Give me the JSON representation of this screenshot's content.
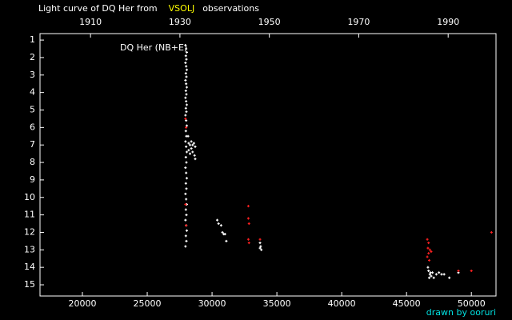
{
  "chart_data": {
    "type": "scatter",
    "title": "Light curve of DQ Her from",
    "title_highlight": "VSOLJ",
    "title_end": "observations",
    "annotation": "DQ Her (NB+E)",
    "credit": "drawn by ooruri",
    "xlim": [
      16730,
      51900
    ],
    "xticks": [
      20000,
      25000,
      30000,
      35000,
      40000,
      45000,
      50000
    ],
    "x2lim": [
      1898.7,
      2000.7
    ],
    "x2ticks": [
      1910,
      1930,
      1950,
      1970,
      1990
    ],
    "ylim": [
      15.64,
      0.63
    ],
    "yticks": [
      1,
      2,
      3,
      4,
      5,
      6,
      7,
      8,
      9,
      10,
      11,
      12,
      13,
      14,
      15
    ],
    "series": [
      {
        "color": "#ffffff",
        "x": [
          27950,
          28000,
          28050,
          27980,
          28020,
          27950,
          28000,
          28050,
          27980,
          28020,
          27950,
          28000,
          28050,
          27980,
          28020,
          27950,
          28000,
          28050,
          27980,
          28020,
          27950,
          28000,
          28050,
          27980,
          28020,
          27950,
          28000,
          28050,
          27980,
          28020,
          27950,
          28000,
          28050,
          27980,
          28020,
          27950,
          28000,
          28050,
          27980,
          28020,
          27950,
          28000,
          28050,
          27980,
          28020,
          27950,
          28150,
          28200,
          28300,
          28400,
          28500,
          28600,
          28700,
          28500,
          28650,
          28700,
          28300,
          28400,
          28200,
          30400,
          30500,
          30700,
          30800,
          30900,
          31000,
          31100,
          33700,
          33750,
          33800,
          33700,
          46700,
          46800,
          46900,
          46750,
          47000,
          47100,
          47300,
          47500,
          47700,
          47900,
          48300,
          49000,
          46650,
          46850
        ],
        "values": [
          1.3,
          1.5,
          1.7,
          1.9,
          2.1,
          2.3,
          2.5,
          2.7,
          2.9,
          3.1,
          3.3,
          3.5,
          3.7,
          3.9,
          4.1,
          4.3,
          4.5,
          4.7,
          4.9,
          5.1,
          5.3,
          5.6,
          5.9,
          6.2,
          6.5,
          6.8,
          7.1,
          7.4,
          7.7,
          8.0,
          8.3,
          8.6,
          8.9,
          9.2,
          9.5,
          9.8,
          10.1,
          10.4,
          10.7,
          11.0,
          11.3,
          11.6,
          11.9,
          12.2,
          12.5,
          12.8,
          6.5,
          6.9,
          7.0,
          7.2,
          7.0,
          6.9,
          7.1,
          7.4,
          7.6,
          7.8,
          7.5,
          6.8,
          7.3,
          11.3,
          11.5,
          11.6,
          12.0,
          12.1,
          12.1,
          12.5,
          12.6,
          12.8,
          13.0,
          12.9,
          14.2,
          14.4,
          14.5,
          14.6,
          14.3,
          14.6,
          14.4,
          14.3,
          14.4,
          14.4,
          14.6,
          14.3,
          14.0,
          14.3
        ]
      },
      {
        "color": "#ff2020",
        "x": [
          27950,
          28000,
          27950,
          28000,
          32800,
          32800,
          32850,
          32800,
          32850,
          33700,
          46600,
          46700,
          46650,
          46800,
          46700,
          46900,
          46600,
          46750,
          49000,
          50000,
          51550
        ],
        "values": [
          5.5,
          6.0,
          10.4,
          11.6,
          10.5,
          11.2,
          11.5,
          12.4,
          12.6,
          12.4,
          12.4,
          12.6,
          12.9,
          13.0,
          13.2,
          13.1,
          13.4,
          13.6,
          14.2,
          14.2,
          12.0
        ]
      }
    ]
  }
}
